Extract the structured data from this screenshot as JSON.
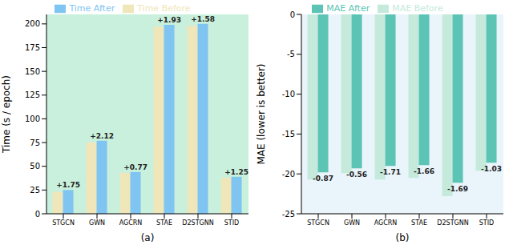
{
  "chart_data": [
    {
      "type": "bar",
      "xlabel": "(a)",
      "ylabel": "Time (s / epoch)",
      "categories": [
        "STGCN",
        "GWN",
        "AGCRN",
        "STAE",
        "D2STGNN",
        "STID"
      ],
      "series": [
        {
          "name": "Time Before",
          "color": "#efe6b9",
          "values": [
            23,
            75,
            43,
            197,
            198,
            38
          ]
        },
        {
          "name": "Time After",
          "color": "#80c4f2",
          "values": [
            25,
            77,
            44,
            199,
            200,
            39
          ]
        }
      ],
      "annotations": [
        "+1.75",
        "+2.12",
        "+0.77",
        "+1.93",
        "+1.58",
        "+1.25"
      ],
      "ylim": [
        0,
        210
      ],
      "yticks": [
        0,
        25,
        50,
        75,
        100,
        125,
        150,
        175,
        200
      ],
      "grid": false,
      "legend": "top"
    },
    {
      "type": "bar",
      "xlabel": "(b)",
      "ylabel": "MAE (lower is better)",
      "categories": [
        "STGCN",
        "GWN",
        "AGCRN",
        "STAE",
        "D2STGNN",
        "STID"
      ],
      "series": [
        {
          "name": "MAE Before",
          "color": "#c5eadb",
          "values": [
            -20.7,
            -19.9,
            -20.7,
            -20.5,
            -22.8,
            -19.6
          ]
        },
        {
          "name": "MAE After",
          "color": "#5cc4b4",
          "values": [
            -19.8,
            -19.3,
            -19.0,
            -18.9,
            -21.1,
            -18.6
          ]
        }
      ],
      "annotations": [
        "-0.87",
        "-0.56",
        "-1.71",
        "-1.66",
        "-1.69",
        "-1.03"
      ],
      "ylim": [
        -25,
        0
      ],
      "yticks": [
        -25,
        -20,
        -15,
        -10,
        -5,
        0
      ],
      "grid": false,
      "legend": "top"
    }
  ]
}
